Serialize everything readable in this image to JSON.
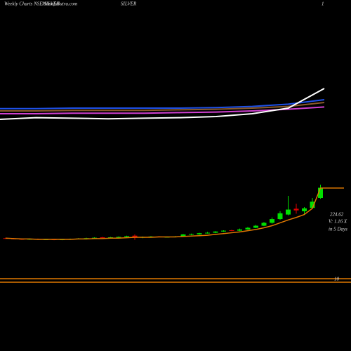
{
  "chart_data": [
    {
      "type": "candlestick",
      "title": "Weekly Charts NSE SILVER",
      "source": "MunafaSutra.com",
      "symbol": "SILVER",
      "page": "1",
      "last_price": "224.62",
      "volume_note": "V: 1.16 X",
      "period_note": "in 5 Days",
      "lower_label": "10",
      "up_color": "#00e000",
      "down_color": "#e00000",
      "ylim": [
        0,
        678
      ],
      "open": [
        103,
        102,
        101,
        100,
        101,
        100,
        100,
        99,
        100,
        101,
        102,
        103,
        105,
        104,
        105,
        106,
        109,
        104,
        106,
        107,
        106,
        106,
        107,
        112,
        112,
        115,
        116,
        119,
        122,
        121,
        124,
        128,
        133,
        140,
        149,
        160,
        174,
        168,
        176,
        200
      ],
      "high": [
        104,
        103,
        102,
        102,
        102,
        101,
        101,
        101,
        102,
        103,
        104,
        105,
        106,
        106,
        107,
        109,
        112,
        107,
        108,
        108,
        107,
        108,
        113,
        114,
        116,
        118,
        120,
        122,
        123,
        126,
        130,
        135,
        142,
        153,
        168,
        205,
        186,
        178,
        200,
        232
      ],
      "low": [
        101,
        100,
        99,
        99,
        99,
        99,
        98,
        98,
        99,
        100,
        101,
        102,
        103,
        103,
        104,
        105,
        99,
        103,
        105,
        105,
        105,
        105,
        106,
        110,
        111,
        114,
        115,
        118,
        120,
        120,
        123,
        127,
        132,
        138,
        147,
        158,
        162,
        160,
        174,
        198
      ],
      "close": [
        102,
        101,
        100,
        101,
        100,
        100,
        99,
        100,
        101,
        102,
        103,
        104,
        104,
        105,
        106,
        108,
        104,
        106,
        107,
        106,
        106,
        107,
        112,
        113,
        115,
        116,
        119,
        121,
        121,
        124,
        128,
        133,
        140,
        149,
        163,
        172,
        170,
        175,
        191,
        224.62
      ],
      "ma": {
        "color": "#e07800",
        "values": [
          103,
          102,
          101,
          101,
          100,
          100,
          100,
          100,
          100,
          101,
          101,
          102,
          102,
          103,
          103,
          104,
          105,
          105,
          105,
          106,
          106,
          106,
          107,
          108,
          109,
          110,
          112,
          114,
          116,
          118,
          121,
          124,
          128,
          133,
          140,
          147,
          153,
          160,
          175,
          224
        ]
      }
    },
    {
      "type": "line",
      "ylim": [
        0,
        237.5
      ],
      "x": [
        0,
        1,
        2,
        3,
        4,
        5,
        6,
        7,
        8,
        9
      ],
      "series": [
        {
          "color": "#8b5a2b",
          "values": [
            40,
            40,
            41,
            41,
            41,
            42,
            43,
            45,
            48,
            55
          ]
        },
        {
          "color": "#d040d0",
          "values": [
            35,
            35,
            36,
            36,
            36,
            37,
            38,
            40,
            43,
            47
          ]
        },
        {
          "color": "#1e50e6",
          "values": [
            44,
            44,
            45,
            45,
            45,
            45,
            46,
            48,
            52,
            60
          ]
        },
        {
          "color": "#ffffff",
          "values": [
            25,
            28,
            27,
            26,
            27,
            28,
            30,
            35,
            45,
            80
          ]
        }
      ]
    }
  ]
}
